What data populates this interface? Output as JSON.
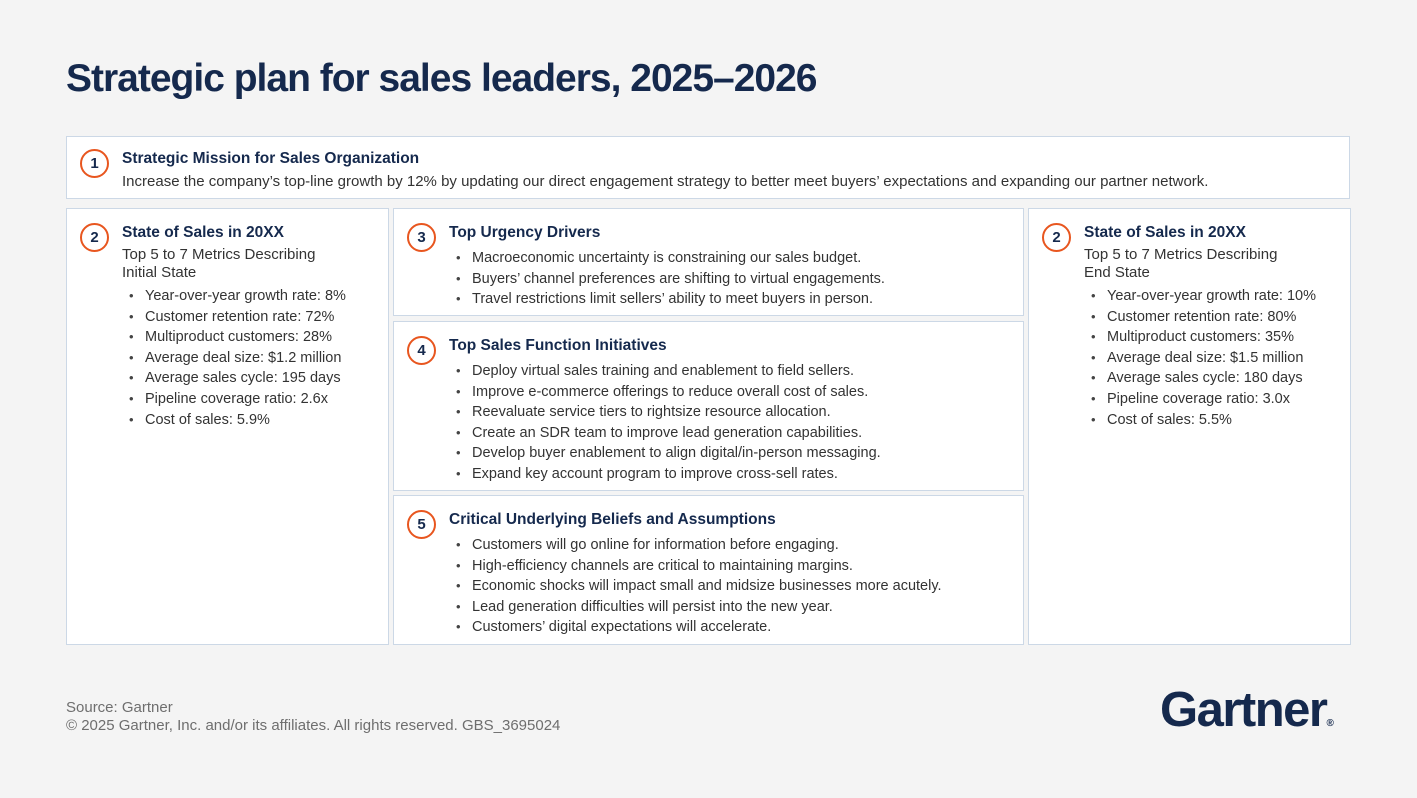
{
  "title": "Strategic plan for sales leaders, 2025–2026",
  "colors": {
    "navy": "#15294d",
    "orange": "#e8561f",
    "body_text": "#333333",
    "card_border": "#ccd8e6",
    "background": "#f4f4f4",
    "footer_gray": "#6e6e6e"
  },
  "cards": {
    "mission": {
      "number": "1",
      "title": "Strategic Mission for Sales Organization",
      "body": "Increase the company’s top-line growth by 12% by updating our direct engagement strategy to better meet buyers’ expectations and expanding our partner network."
    },
    "initial_state": {
      "number": "2",
      "title": "State of Sales in 20XX",
      "subtitle_line1": "Top 5 to 7 Metrics Describing",
      "subtitle_line2": "Initial State",
      "bullets": [
        "Year-over-year growth rate: 8%",
        "Customer retention rate: 72%",
        "Multiproduct customers: 28%",
        "Average deal size: $1.2 million",
        "Average sales cycle: 195 days",
        "Pipeline coverage ratio: 2.6x",
        "Cost of sales: 5.9%"
      ]
    },
    "urgency_drivers": {
      "number": "3",
      "title": "Top Urgency Drivers",
      "bullets": [
        "Macroeconomic uncertainty is constraining our sales budget.",
        "Buyers’ channel preferences are shifting to virtual engagements.",
        "Travel restrictions limit sellers’ ability to meet buyers in person."
      ]
    },
    "initiatives": {
      "number": "4",
      "title": "Top Sales Function Initiatives",
      "bullets": [
        "Deploy virtual sales training and enablement to field sellers.",
        "Improve e-commerce offerings to reduce overall cost of sales.",
        "Reevaluate service tiers to rightsize resource allocation.",
        "Create an SDR team to improve lead generation capabilities.",
        "Develop buyer enablement to align digital/in-person messaging.",
        "Expand key account program to improve cross-sell rates."
      ]
    },
    "beliefs": {
      "number": "5",
      "title": "Critical Underlying Beliefs and Assumptions",
      "bullets": [
        "Customers will go online for information before engaging.",
        "High-efficiency channels are critical to maintaining margins.",
        "Economic shocks will impact small and midsize businesses more acutely.",
        "Lead generation difficulties will persist into the new year.",
        "Customers’ digital expectations will accelerate."
      ]
    },
    "end_state": {
      "number": "2",
      "title": "State of Sales in 20XX",
      "subtitle_line1": "Top 5 to 7 Metrics Describing",
      "subtitle_line2": "End State",
      "bullets": [
        "Year-over-year growth rate: 10%",
        "Customer retention rate: 80%",
        "Multiproduct customers: 35%",
        "Average deal size: $1.5 million",
        "Average sales cycle: 180 days",
        "Pipeline coverage ratio: 3.0x",
        "Cost of sales: 5.5%"
      ]
    }
  },
  "footer": {
    "source": "Source: Gartner",
    "copyright": "© 2025 Gartner, Inc. and/or its affiliates. All rights reserved. GBS_3695024"
  },
  "logo": {
    "text": "Gartner",
    "registered": "®"
  }
}
